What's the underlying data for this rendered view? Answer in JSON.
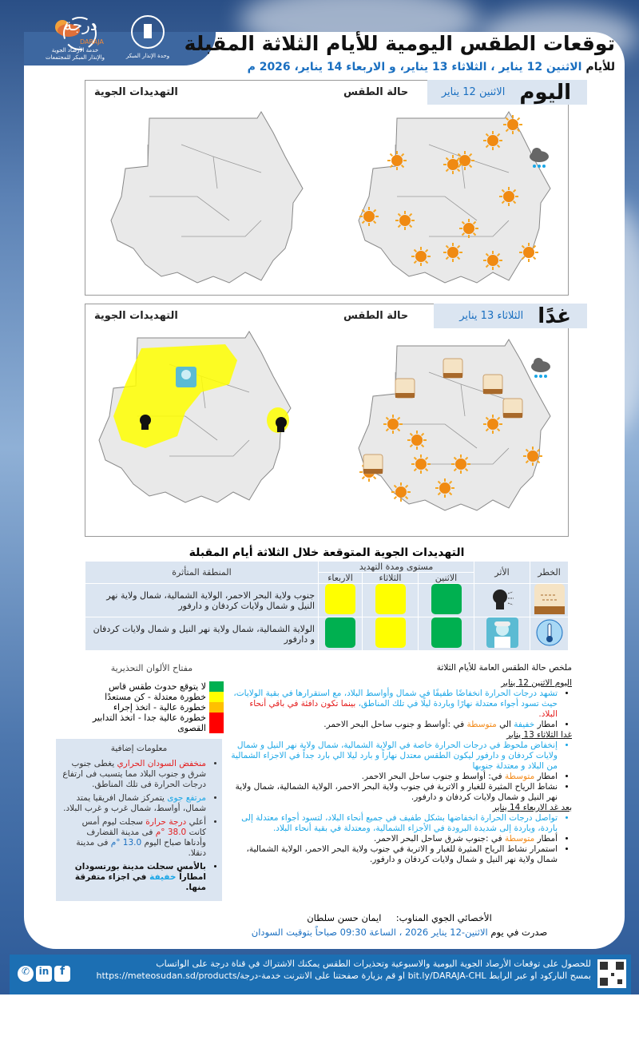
{
  "header": {
    "logo_daraja": "درجة",
    "logo_daraja_en": "DARAJA",
    "logo_daraja_sub1": "خدمة الأرصاد الجوية",
    "logo_daraja_sub2": "والإنذار المبكر للمجتمعات",
    "logo_unit": "وحدة الإنذار المبكر",
    "title": "توقعات الطقس اليومية للأيام الثلاثة المقبلة",
    "subtitle_prefix": "للأيام",
    "subtitle_dates": "الاثنين 12 يناير ، الثلاثاء 13 يناير، و الاربعاء 14 يناير، 2026 م"
  },
  "today": {
    "label": "اليوم",
    "date": "الاثنين 12 يناير",
    "weather_label": "حالة الطقس",
    "threats_label": "التهديدات الجوية",
    "weather_icons": [
      "sun",
      "rain-cloud"
    ]
  },
  "tomorrow": {
    "label": "غدًا",
    "date": "الثلاثاء 13 يناير",
    "weather_label": "حالة الطقس",
    "threats_label": "التهديدات الجوية",
    "weather_icons": [
      "sun",
      "rain-cloud",
      "dust"
    ],
    "threat_icons": [
      "cold-person",
      "dust-cough"
    ],
    "threat_zone_color": "#ffff00"
  },
  "threats_table": {
    "title": "التهديدات الجوية المتوقعة خلال الثلاثة أيام المقبلة",
    "headers": {
      "hazard": "الخطر",
      "impact": "الأثر",
      "level": "مستوى ومدة التهديد",
      "mon": "الاثنين",
      "tue": "الثلاثاء",
      "wed": "الاربعاء",
      "area": "المنطقة المتأثرة"
    },
    "rows": [
      {
        "hazard_icon": "dust",
        "impact_icon": "cough",
        "levels": [
          "#00b050",
          "#ffff00",
          "#ffff00"
        ],
        "area": "جنوب ولاية البحر الاحمر، الولاية الشمالية، شمال ولاية نهر النيل و شمال ولايات كردفان و دارفور"
      },
      {
        "hazard_icon": "thermometer-cold",
        "impact_icon": "cold-person",
        "levels": [
          "#00b050",
          "#ffff00",
          "#00b050"
        ],
        "area": "الولاية الشمالية، شمال ولاية نهر النيل و شمال ولايات كردفان و دارفور"
      }
    ]
  },
  "summary": {
    "title": "ملخص حالة الطقس العامة للأيام الثلاثة",
    "d1_title": "اليوم  الاثنين 12 يناير",
    "d1_t1": "تشهد درجات الحرارة انخفاضًا طفيفًا في شمال وأواسط البلاد، مع استقرارها في بقية الولايات، حيث تسود أجواء معتدلة نهارًا وباردة ليلًا في تلك المناطق،",
    "d1_t2": "بينما تكون دافئة في باقي أنحاء البلاد.",
    "d1_r1": "امطار",
    "d1_r2": "خفيفة",
    "d1_r3": "الي",
    "d1_r4": "متوسطة",
    "d1_r5": "في :أواسط و جنوب ساحل البحر الاحمر.",
    "d2_title": "غدا  الثلاثاء 13 يناير",
    "d2_t1": "إنخفاض ملحوظ  في درجات الحرارة خاصة  في الولاية الشمالية،  شمال ولاية نهر النيل و شمال ولايات كردفان و دارفور  ليكون الطقس معتدل نهاراً  و بارد ليلا الي بارد جداً في الاجزاء الشمالية من البلاد و معتدلة جنوبها",
    "d2_r1": "امطار",
    "d2_r2": "متوسطة",
    "d2_r3": "في: أواسط و جنوب ساحل البحر الاحمر.",
    "d2_w": "نشاط الرياح المثيرة للغبار و الاتربة في  جنوب ولاية البحر الاحمر، الولاية الشمالية، شمال ولاية نهر النيل و شمال ولايات كردفان و دارفور.",
    "d3_title": "بعد غد الاربعاء 14 يناير",
    "d3_t1": "تواصل درجات الحرارة انخفاضها بشكل طفيف في جميع أنحاء البلاد، لتسود أجواء معتدلة إلى باردة، وباردة إلى شديدة البرودة في الأجزاء الشمالية، ومعتدلة في بقية أنحاء البلاد.",
    "d3_r1": "أمطار",
    "d3_r2": "متوسطة",
    "d3_r3": "في :جنوب شرق ساحل البحر الاحمر.",
    "d3_w": "استمرار نشاط الرياح المثيرة للغبار و الاتربة  في   جنوب ولاية البحر الاحمر، الولاية الشمالية، شمال ولاية نهر النيل و شمال ولايات كردفان و دارفور."
  },
  "legend": {
    "title": "مفتاح الألوان التحذيرية",
    "items": [
      {
        "color": "#00b050",
        "label": "لا يتوقع حدوث طقس قاس"
      },
      {
        "color": "#ffff00",
        "label": "خطورة معتدلة - كن مستعدًا"
      },
      {
        "color": "#ffc000",
        "label": "خطورة عالية - اتخذ إجراء"
      },
      {
        "color": "#ff0000",
        "label": "خطورة عالية جدا - اتخذ التدابير القصوى"
      }
    ]
  },
  "info": {
    "title": "معلومات إضافية",
    "i1a": "منخفض السودان الحراري",
    "i1b": "يغطى  جنوب شرق و جنوب البلاد  مما يتسبب فى ارتفاع درجات الحرارة فى تلك المناطق.",
    "i2a": "مرتفع جوى",
    "i2b": "يتمركز شمال افريقيا يمتد شمال، أواسط، شمال غرب و غرب البلاد.",
    "i3a": "أعلي",
    "i3b": "درجة حرارة",
    "i3c": "سجلت ليوم أمس كانت",
    "i3d": "38.0 °م",
    "i3e": "فى مدينة القضارف وأدناها صباح اليوم",
    "i3f": "13.0 °م",
    "i3g": "فى مدينة دنقلا.",
    "i4a": "بالأمس سجلت مدينة بورتسودان امطاراً",
    "i4b": "خفيفة",
    "i4c": "في اجزاء متفرقة منها."
  },
  "signature": {
    "role": "الأخصائي الجوي المناوب:",
    "name": "ايمان حسن سلطان",
    "issued_prefix": "صدرت في يوم",
    "issued": "الاثنين-12 يناير  2026 ، الساعة 09:30 صباحاً بتوقيت السودان"
  },
  "footer": {
    "line1": "للحصول على توقعات الأرصاد الجوية اليومية والاسبوعية وتحذيرات الطقس يمكنك الاشتراك في قناة درجة على الواتساب",
    "line2": "بمسح الباركود او عبر الرابط bit.ly/DARAJA-CHL او قم بزيارة صفحتنا على الانترنت خدمة-درجة/https://meteosudan.sd/products",
    "social": [
      "whatsapp",
      "linkedin",
      "facebook"
    ]
  }
}
